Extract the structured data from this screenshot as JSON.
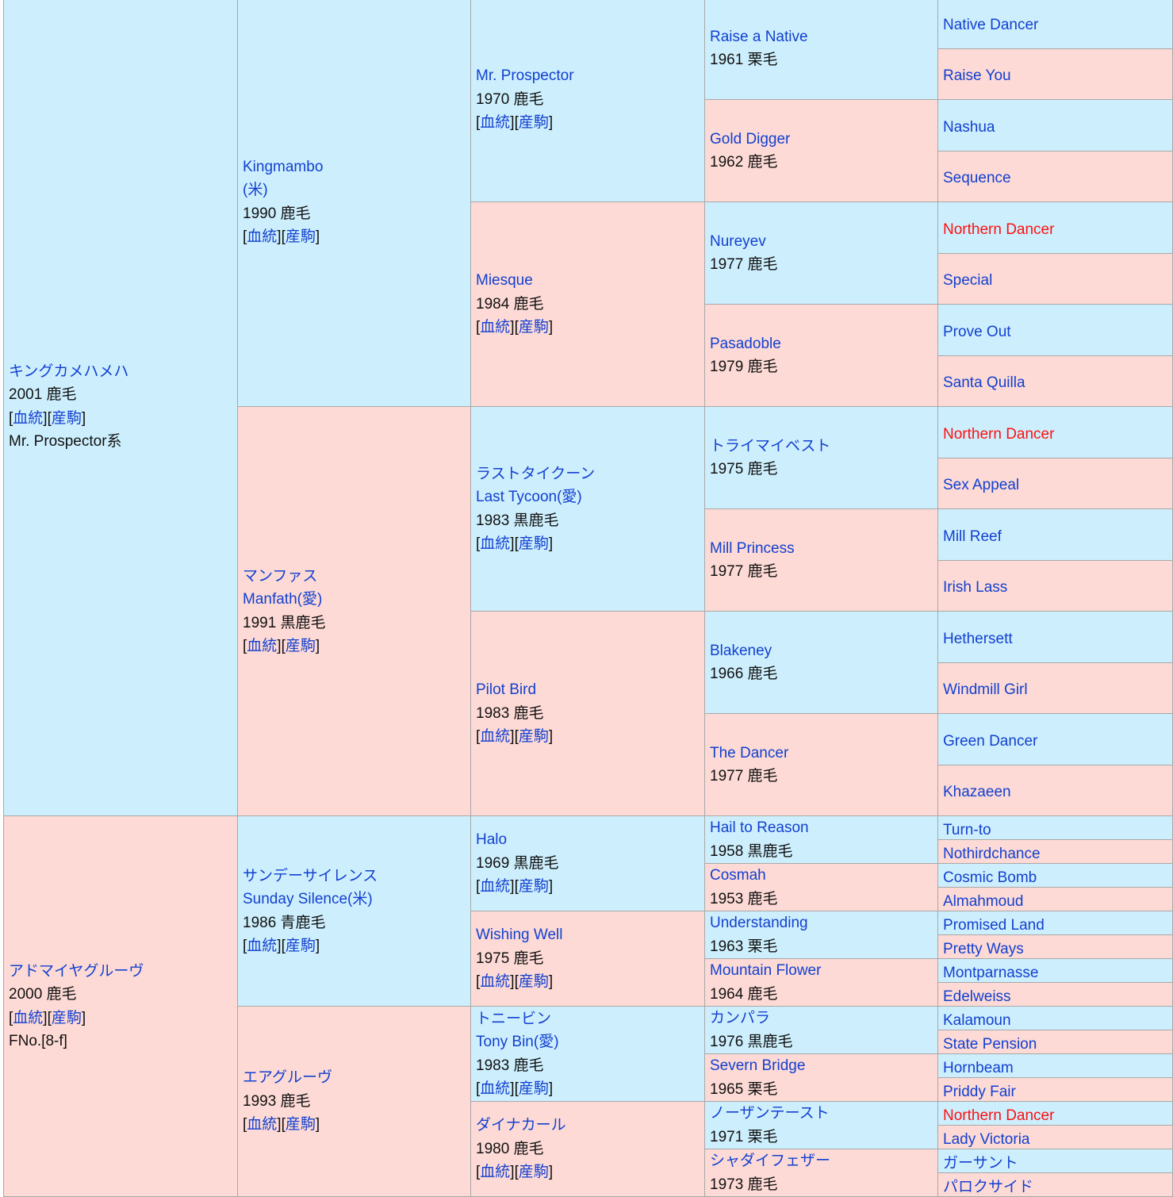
{
  "colors": {
    "male": "#cdeffd",
    "female": "#fddad5",
    "link": "#1340d0",
    "highlight": "#ff1010"
  },
  "link_labels": {
    "pedigree": "血統",
    "progeny": "産駒"
  },
  "gen1": [
    {
      "name": [
        "キングカメハメハ"
      ],
      "info": "2001 鹿毛",
      "extra": "Mr. Prospector系"
    },
    {
      "name": [
        "アドマイヤグルーヴ"
      ],
      "info": "2000 鹿毛",
      "extra": "FNo.[8-f]"
    }
  ],
  "gen2": [
    {
      "name": [
        "Kingmambo",
        "(米)"
      ],
      "info": "1990 鹿毛"
    },
    {
      "name": [
        "マンファス",
        "Manfath(愛)"
      ],
      "info": "1991 黒鹿毛"
    },
    {
      "name": [
        "サンデーサイレンス",
        "Sunday Silence(米)"
      ],
      "info": "1986 青鹿毛"
    },
    {
      "name": [
        "エアグルーヴ"
      ],
      "info": "1993 鹿毛"
    }
  ],
  "gen3": [
    {
      "name": [
        "Mr. Prospector"
      ],
      "info": "1970 鹿毛"
    },
    {
      "name": [
        "Miesque"
      ],
      "info": "1984 鹿毛"
    },
    {
      "name": [
        "ラストタイクーン",
        "Last Tycoon(愛)"
      ],
      "info": "1983 黒鹿毛"
    },
    {
      "name": [
        "Pilot Bird"
      ],
      "info": "1983 鹿毛"
    },
    {
      "name": [
        "Halo"
      ],
      "info": "1969 黒鹿毛"
    },
    {
      "name": [
        "Wishing Well"
      ],
      "info": "1975 鹿毛"
    },
    {
      "name": [
        "トニービン",
        "Tony Bin(愛)"
      ],
      "info": "1983 鹿毛"
    },
    {
      "name": [
        "ダイナカール"
      ],
      "info": "1980 鹿毛"
    }
  ],
  "gen4": [
    {
      "name": [
        "Raise a Native"
      ],
      "info": "1961 栗毛"
    },
    {
      "name": [
        "Gold Digger"
      ],
      "info": "1962 鹿毛"
    },
    {
      "name": [
        "Nureyev"
      ],
      "info": "1977 鹿毛"
    },
    {
      "name": [
        "Pasadoble"
      ],
      "info": "1979 鹿毛"
    },
    {
      "name": [
        "トライマイベスト"
      ],
      "info": "1975 鹿毛"
    },
    {
      "name": [
        "Mill Princess"
      ],
      "info": "1977 鹿毛"
    },
    {
      "name": [
        "Blakeney"
      ],
      "info": "1966 鹿毛"
    },
    {
      "name": [
        "The Dancer"
      ],
      "info": "1977 鹿毛"
    },
    {
      "name": [
        "Hail to Reason"
      ],
      "info": "1958 黒鹿毛"
    },
    {
      "name": [
        "Cosmah"
      ],
      "info": "1953 鹿毛"
    },
    {
      "name": [
        "Understanding"
      ],
      "info": "1963 栗毛"
    },
    {
      "name": [
        "Mountain Flower"
      ],
      "info": "1964 鹿毛"
    },
    {
      "name": [
        "カンパラ"
      ],
      "info": "1976 黒鹿毛"
    },
    {
      "name": [
        "Severn Bridge"
      ],
      "info": "1965 栗毛"
    },
    {
      "name": [
        "ノーザンテースト"
      ],
      "info": "1971 栗毛"
    },
    {
      "name": [
        "シャダイフェザー"
      ],
      "info": "1973 鹿毛"
    }
  ],
  "gen5": [
    {
      "name": "Native Dancer"
    },
    {
      "name": "Raise You"
    },
    {
      "name": "Nashua"
    },
    {
      "name": "Sequence"
    },
    {
      "name": "Northern Dancer",
      "highlight": true
    },
    {
      "name": "Special"
    },
    {
      "name": "Prove Out"
    },
    {
      "name": "Santa Quilla"
    },
    {
      "name": "Northern Dancer",
      "highlight": true
    },
    {
      "name": "Sex Appeal"
    },
    {
      "name": "Mill Reef"
    },
    {
      "name": "Irish Lass"
    },
    {
      "name": "Hethersett"
    },
    {
      "name": "Windmill Girl"
    },
    {
      "name": "Green Dancer"
    },
    {
      "name": "Khazaeen"
    },
    {
      "name": "Turn-to"
    },
    {
      "name": "Nothirdchance"
    },
    {
      "name": "Cosmic Bomb"
    },
    {
      "name": "Almahmoud"
    },
    {
      "name": "Promised Land"
    },
    {
      "name": "Pretty Ways"
    },
    {
      "name": "Montparnasse"
    },
    {
      "name": "Edelweiss"
    },
    {
      "name": "Kalamoun"
    },
    {
      "name": "State Pension"
    },
    {
      "name": "Hornbeam"
    },
    {
      "name": "Priddy Fair"
    },
    {
      "name": "Northern Dancer",
      "highlight": true
    },
    {
      "name": "Lady Victoria"
    },
    {
      "name": "ガーサント"
    },
    {
      "name": "パロクサイド"
    }
  ]
}
